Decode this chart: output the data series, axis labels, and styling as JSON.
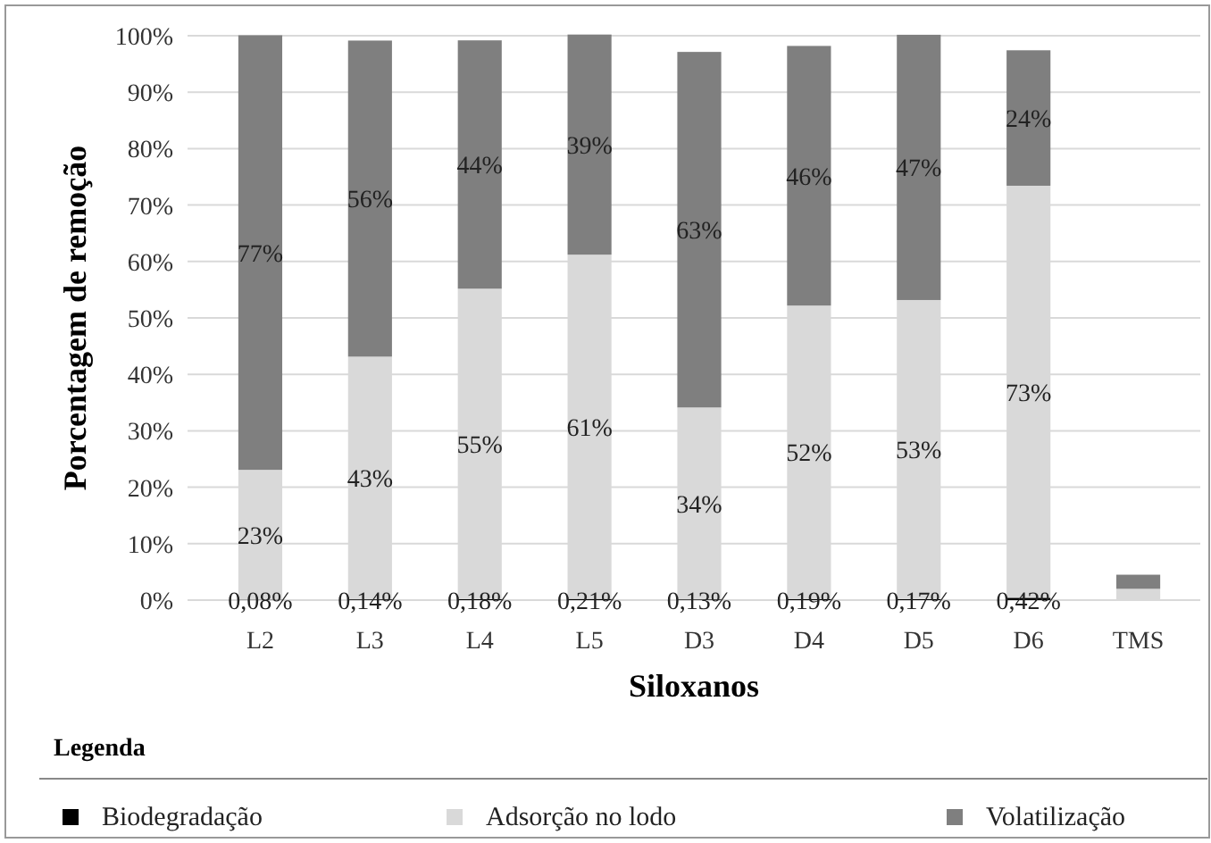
{
  "chart_data": {
    "type": "bar",
    "stacked": true,
    "xlabel": "Siloxanos",
    "ylabel": "Porcentagem de remoção",
    "legend_title": "Legenda",
    "legend": "bottom",
    "grid": "y",
    "categories": [
      "L2",
      "L3",
      "L4",
      "L5",
      "D3",
      "D4",
      "D5",
      "D6",
      "TMS"
    ],
    "series": [
      {
        "name": "Biodegradação",
        "color": "#000000",
        "values": [
          0.08,
          0.14,
          0.18,
          0.21,
          0.13,
          0.19,
          0.17,
          0.42,
          null
        ],
        "value_labels": [
          "0,08%",
          "0,14%",
          "0,18%",
          "0,21%",
          "0,13%",
          "0,19%",
          "0,17%",
          "0,42%",
          null
        ]
      },
      {
        "name": "Adsorção no lodo",
        "color": "#d9d9d9",
        "values": [
          23,
          43,
          55,
          61,
          34,
          52,
          53,
          73,
          2
        ],
        "value_labels": [
          "23%",
          "43%",
          "55%",
          "61%",
          "34%",
          "52%",
          "53%",
          "73%",
          null
        ]
      },
      {
        "name": "Volatilização",
        "color": "#7f7f7f",
        "values": [
          77,
          56,
          44,
          39,
          63,
          46,
          47,
          24,
          2.5
        ],
        "value_labels": [
          "77%",
          "56%",
          "44%",
          "39%",
          "63%",
          "46%",
          "47%",
          "24%",
          null
        ]
      }
    ],
    "ylim": [
      0,
      100
    ],
    "yticks": [
      {
        "value": 0,
        "label": "0%"
      },
      {
        "value": 10,
        "label": "10%"
      },
      {
        "value": 20,
        "label": "20%"
      },
      {
        "value": 30,
        "label": "30%"
      },
      {
        "value": 40,
        "label": "40%"
      },
      {
        "value": 50,
        "label": "50%"
      },
      {
        "value": 60,
        "label": "60%"
      },
      {
        "value": 70,
        "label": "70%"
      },
      {
        "value": 80,
        "label": "80%"
      },
      {
        "value": 90,
        "label": "90%"
      },
      {
        "value": 100,
        "label": "100%"
      }
    ]
  }
}
